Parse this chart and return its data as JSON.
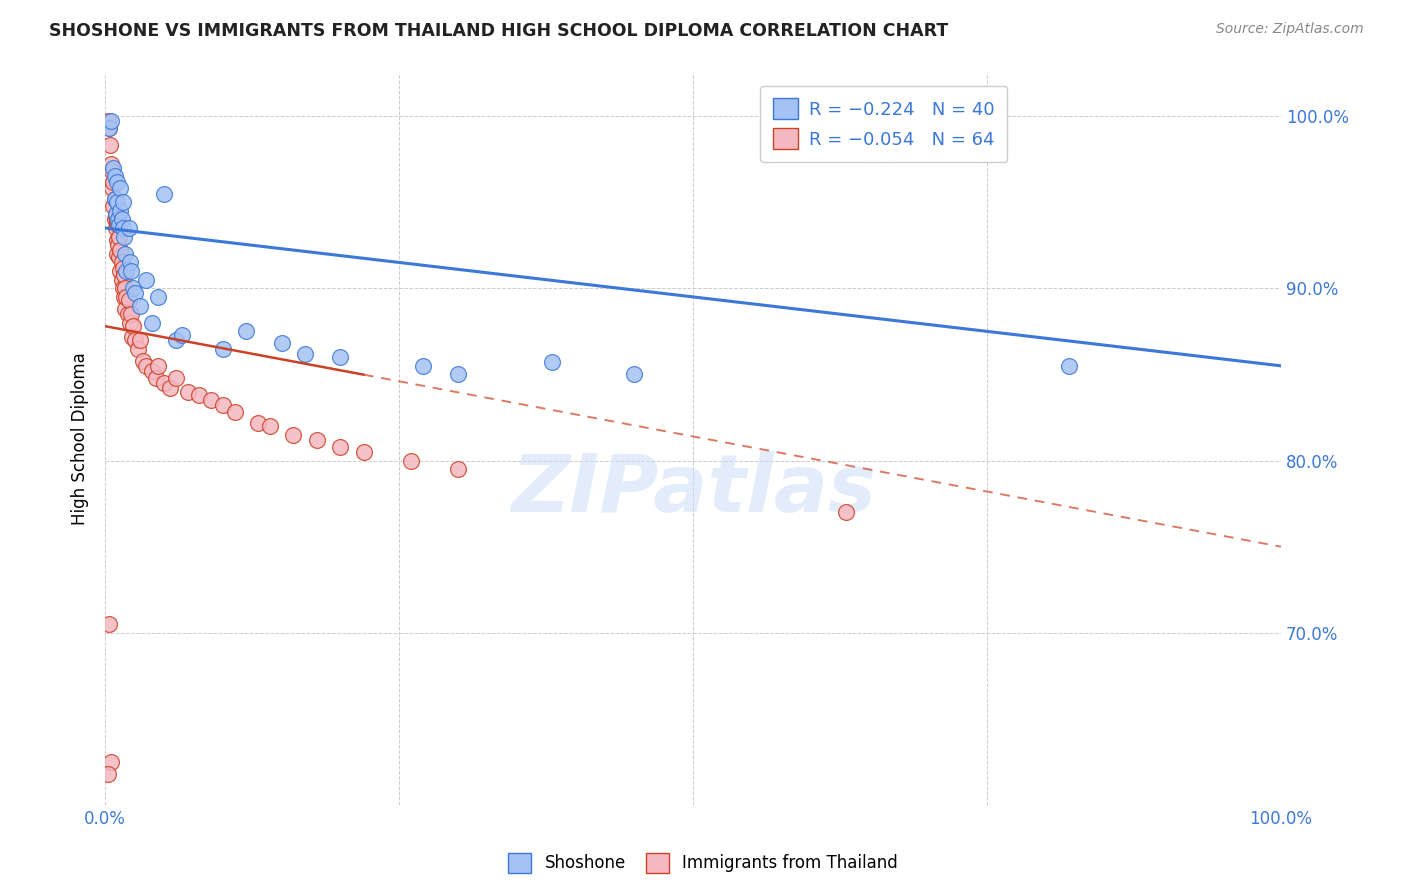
{
  "title": "SHOSHONE VS IMMIGRANTS FROM THAILAND HIGH SCHOOL DIPLOMA CORRELATION CHART",
  "source": "Source: ZipAtlas.com",
  "ylabel": "High School Diploma",
  "xlim": [
    0.0,
    1.0
  ],
  "ylim": [
    0.6,
    1.025
  ],
  "legend_blue_R": "R = −0.224",
  "legend_blue_N": "N = 40",
  "legend_pink_R": "R = −0.054",
  "legend_pink_N": "N = 64",
  "shoshone_color": "#a4c2f4",
  "thailand_color": "#f4b8c1",
  "trendline_blue": "#3c78d8",
  "trendline_pink": "#cc4125",
  "watermark_text": "ZIPatlas",
  "shoshone_x": [
    0.003,
    0.005,
    0.007,
    0.008,
    0.008,
    0.009,
    0.01,
    0.01,
    0.011,
    0.012,
    0.013,
    0.013,
    0.014,
    0.015,
    0.015,
    0.016,
    0.017,
    0.018,
    0.02,
    0.021,
    0.022,
    0.024,
    0.025,
    0.03,
    0.035,
    0.04,
    0.045,
    0.05,
    0.06,
    0.065,
    0.1,
    0.12,
    0.15,
    0.17,
    0.2,
    0.27,
    0.3,
    0.38,
    0.82,
    0.45
  ],
  "shoshone_y": [
    0.993,
    0.997,
    0.97,
    0.965,
    0.952,
    0.943,
    0.962,
    0.95,
    0.94,
    0.937,
    0.958,
    0.945,
    0.94,
    0.935,
    0.95,
    0.93,
    0.92,
    0.91,
    0.935,
    0.915,
    0.91,
    0.9,
    0.897,
    0.89,
    0.905,
    0.88,
    0.895,
    0.955,
    0.87,
    0.873,
    0.865,
    0.875,
    0.868,
    0.862,
    0.86,
    0.855,
    0.85,
    0.857,
    0.855,
    0.85
  ],
  "thailand_x": [
    0.002,
    0.003,
    0.004,
    0.005,
    0.006,
    0.006,
    0.007,
    0.007,
    0.008,
    0.008,
    0.009,
    0.009,
    0.01,
    0.01,
    0.01,
    0.011,
    0.011,
    0.012,
    0.012,
    0.013,
    0.013,
    0.014,
    0.014,
    0.015,
    0.015,
    0.016,
    0.016,
    0.017,
    0.017,
    0.018,
    0.019,
    0.02,
    0.021,
    0.022,
    0.023,
    0.024,
    0.025,
    0.028,
    0.03,
    0.032,
    0.035,
    0.04,
    0.043,
    0.045,
    0.05,
    0.055,
    0.06,
    0.07,
    0.08,
    0.09,
    0.1,
    0.11,
    0.13,
    0.14,
    0.16,
    0.18,
    0.2,
    0.22,
    0.26,
    0.3,
    0.003,
    0.005,
    0.63,
    0.002
  ],
  "thailand_y": [
    0.997,
    0.993,
    0.983,
    0.972,
    0.968,
    0.958,
    0.962,
    0.948,
    0.952,
    0.94,
    0.935,
    0.942,
    0.938,
    0.928,
    0.92,
    0.937,
    0.925,
    0.93,
    0.918,
    0.922,
    0.91,
    0.915,
    0.905,
    0.912,
    0.9,
    0.908,
    0.895,
    0.9,
    0.888,
    0.895,
    0.885,
    0.893,
    0.88,
    0.885,
    0.872,
    0.878,
    0.87,
    0.865,
    0.87,
    0.858,
    0.855,
    0.852,
    0.848,
    0.855,
    0.845,
    0.842,
    0.848,
    0.84,
    0.838,
    0.835,
    0.832,
    0.828,
    0.822,
    0.82,
    0.815,
    0.812,
    0.808,
    0.805,
    0.8,
    0.795,
    0.705,
    0.625,
    0.77,
    0.618
  ]
}
